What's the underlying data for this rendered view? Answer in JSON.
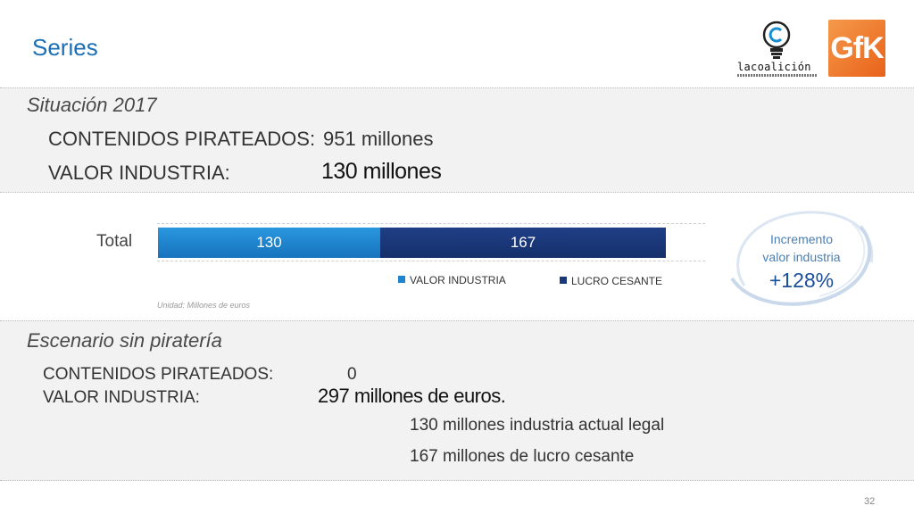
{
  "header": {
    "title": "Series",
    "logo_coalicion": "lacoalición",
    "logo_gfk": "GfK"
  },
  "situacion": {
    "heading": "Situación 2017",
    "row1_label": "CONTENIDOS PIRATEADOS:",
    "row1_value": "951 millones",
    "row2_label": "VALOR INDUSTRIA:",
    "row2_value": "130 millones"
  },
  "chart_data": {
    "type": "bar",
    "orientation": "horizontal",
    "stacked": true,
    "categories": [
      "Total"
    ],
    "series": [
      {
        "name": "VALOR INDUSTRIA",
        "values": [
          130
        ],
        "color": "#1f84cc"
      },
      {
        "name": "LUCRO CESANTE",
        "values": [
          167
        ],
        "color": "#1a3878"
      }
    ],
    "xlim": [
      0,
      297
    ],
    "legend": "bottom",
    "note": "Unidad: Millones de euros"
  },
  "badge": {
    "line1": "Incremento",
    "line2": "valor industria",
    "value": "+128%"
  },
  "escenario": {
    "heading": "Escenario sin piratería",
    "row1_label": "CONTENIDOS PIRATEADOS:",
    "row1_value": "0",
    "row2_label": "VALOR INDUSTRIA:",
    "row2_value": "297 millones de euros.",
    "detail1": "130 millones industria actual legal",
    "detail2": "167 millones de lucro cesante"
  },
  "footer": {
    "page": "32"
  },
  "colors": {
    "accent": "#1a6fb5",
    "band": "#f2f2f2"
  }
}
